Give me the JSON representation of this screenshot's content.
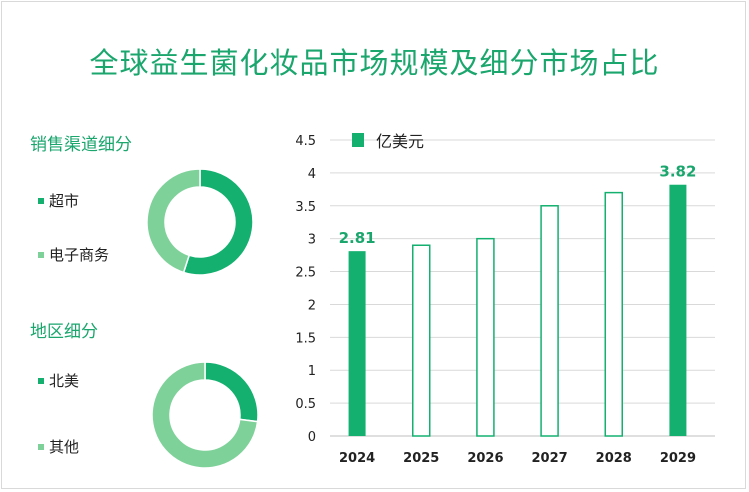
{
  "title": "全球益生菌化妆品市场规模及细分市场占比",
  "colors": {
    "title": "#1aa66d",
    "dark_green": "#14b070",
    "light_green": "#7fd19a",
    "axis_text": "#222222",
    "grid": "#d9d9d9"
  },
  "sales_channel": {
    "title": "销售渠道细分",
    "items": [
      {
        "label": "超市",
        "value": 0.55,
        "color": "#14b070"
      },
      {
        "label": "电子商务",
        "value": 0.45,
        "color": "#7fd19a"
      }
    ]
  },
  "region": {
    "title": "地区细分",
    "items": [
      {
        "label": "北美",
        "value": 0.27,
        "color": "#14b070"
      },
      {
        "label": "其他",
        "value": 0.73,
        "color": "#7fd19a"
      }
    ]
  },
  "chart_data": [
    {
      "type": "pie",
      "title": "销售渠道细分",
      "categories": [
        "超市",
        "电子商务"
      ],
      "values": [
        0.55,
        0.45
      ]
    },
    {
      "type": "pie",
      "title": "地区细分",
      "categories": [
        "北美",
        "其他"
      ],
      "values": [
        0.27,
        0.73
      ]
    },
    {
      "type": "bar",
      "title": "",
      "legend": "亿美元",
      "categories": [
        "2024",
        "2025",
        "2026",
        "2027",
        "2028",
        "2029"
      ],
      "values": [
        2.81,
        2.9,
        3.0,
        3.5,
        3.7,
        3.82
      ],
      "filled": [
        true,
        false,
        false,
        false,
        false,
        true
      ],
      "data_labels": [
        "2.81",
        null,
        null,
        null,
        null,
        "3.82"
      ],
      "ylim": [
        0,
        4.5
      ],
      "yticks": [
        "0",
        "0.5",
        "1",
        "1.5",
        "2",
        "2.5",
        "3",
        "3.5",
        "4",
        "4.5"
      ],
      "grid": true
    }
  ]
}
